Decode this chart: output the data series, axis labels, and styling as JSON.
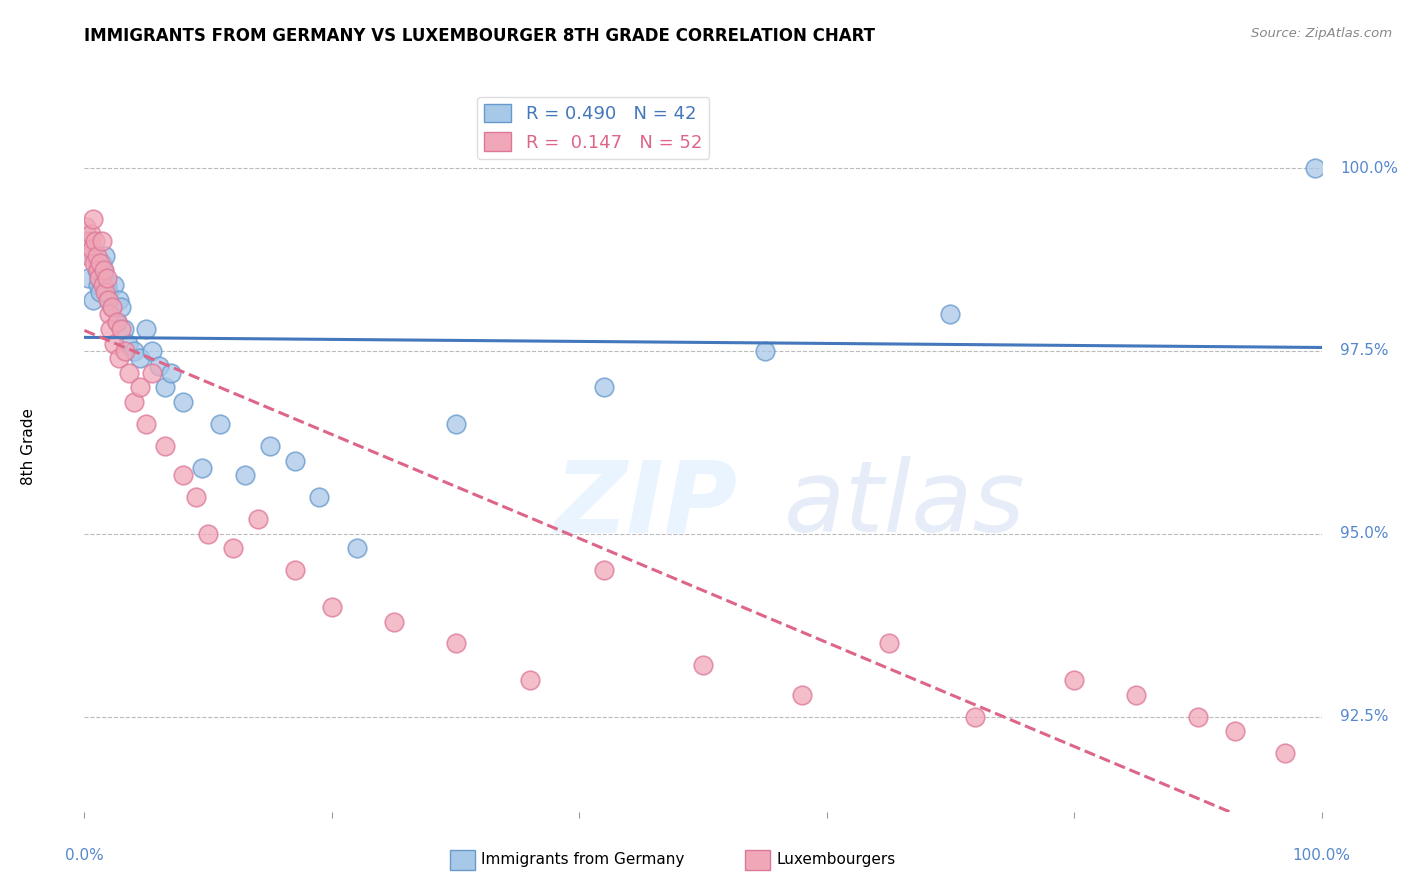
{
  "title": "IMMIGRANTS FROM GERMANY VS LUXEMBOURGER 8TH GRADE CORRELATION CHART",
  "source": "Source: ZipAtlas.com",
  "ylabel": "8th Grade",
  "x_min": 0.0,
  "x_max": 100.0,
  "y_min": 91.2,
  "y_max": 101.2,
  "yticks": [
    92.5,
    95.0,
    97.5,
    100.0
  ],
  "ytick_labels": [
    "92.5%",
    "95.0%",
    "97.5%",
    "100.0%"
  ],
  "blue_R": 0.49,
  "blue_N": 42,
  "pink_R": 0.147,
  "pink_N": 52,
  "blue_color": "#a8c8e8",
  "pink_color": "#f0a8b8",
  "blue_edge_color": "#6699cc",
  "pink_edge_color": "#dd7799",
  "blue_line_color": "#4477bb",
  "pink_line_color": "#dd6688",
  "axis_tick_color": "#5588cc",
  "legend_label_blue": "Immigrants from Germany",
  "legend_label_pink": "Luxembourgers",
  "blue_points_x": [
    0.3,
    0.5,
    0.7,
    0.8,
    1.0,
    1.1,
    1.2,
    1.3,
    1.4,
    1.5,
    1.6,
    1.7,
    1.8,
    1.9,
    2.0,
    2.2,
    2.4,
    2.6,
    2.8,
    3.0,
    3.2,
    3.5,
    4.0,
    4.5,
    5.0,
    5.5,
    6.0,
    6.5,
    7.0,
    8.0,
    9.5,
    11.0,
    13.0,
    15.0,
    17.0,
    19.0,
    22.0,
    30.0,
    42.0,
    55.0,
    70.0,
    99.5
  ],
  "blue_points_y": [
    98.5,
    99.0,
    98.2,
    98.8,
    98.6,
    98.4,
    98.5,
    98.3,
    98.7,
    98.6,
    98.5,
    98.8,
    98.4,
    98.3,
    98.2,
    98.1,
    98.4,
    97.9,
    98.2,
    98.1,
    97.8,
    97.6,
    97.5,
    97.4,
    97.8,
    97.5,
    97.3,
    97.0,
    97.2,
    96.8,
    95.9,
    96.5,
    95.8,
    96.2,
    96.0,
    95.5,
    94.8,
    96.5,
    97.0,
    97.5,
    98.0,
    100.0
  ],
  "pink_points_x": [
    0.1,
    0.3,
    0.4,
    0.5,
    0.6,
    0.7,
    0.8,
    0.9,
    1.0,
    1.1,
    1.2,
    1.3,
    1.4,
    1.5,
    1.6,
    1.7,
    1.8,
    1.9,
    2.0,
    2.1,
    2.2,
    2.4,
    2.6,
    2.8,
    3.0,
    3.3,
    3.6,
    4.0,
    4.5,
    5.0,
    5.5,
    6.5,
    8.0,
    9.0,
    10.0,
    12.0,
    14.0,
    17.0,
    20.0,
    25.0,
    30.0,
    36.0,
    42.0,
    50.0,
    58.0,
    65.0,
    72.0,
    80.0,
    85.0,
    90.0,
    93.0,
    97.0
  ],
  "pink_points_y": [
    99.2,
    99.0,
    98.8,
    99.1,
    98.9,
    99.3,
    98.7,
    99.0,
    98.8,
    98.6,
    98.5,
    98.7,
    99.0,
    98.4,
    98.6,
    98.3,
    98.5,
    98.2,
    98.0,
    97.8,
    98.1,
    97.6,
    97.9,
    97.4,
    97.8,
    97.5,
    97.2,
    96.8,
    97.0,
    96.5,
    97.2,
    96.2,
    95.8,
    95.5,
    95.0,
    94.8,
    95.2,
    94.5,
    94.0,
    93.8,
    93.5,
    93.0,
    94.5,
    93.2,
    92.8,
    93.5,
    92.5,
    93.0,
    92.8,
    92.5,
    92.3,
    92.0
  ]
}
